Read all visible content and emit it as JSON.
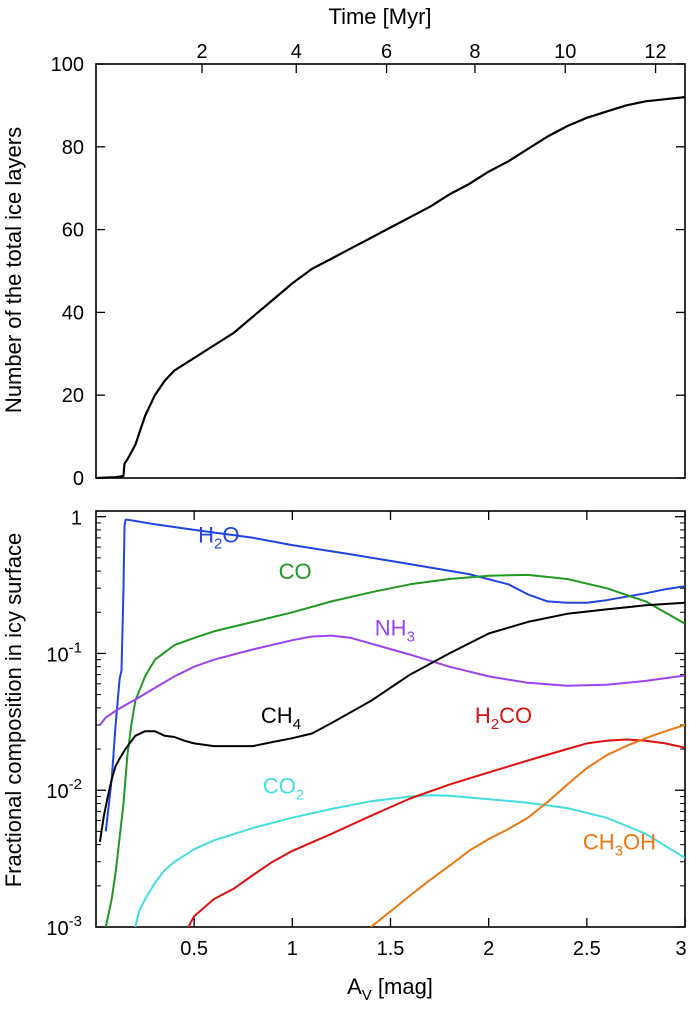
{
  "chart_data": [
    {
      "type": "line",
      "xlabel_top": "Time [Myr]",
      "ylabel": "Number of the total ice layers",
      "ylim": [
        0,
        100
      ],
      "yticks": [
        0,
        20,
        40,
        60,
        80,
        100
      ],
      "xlim": [
        0.0,
        3.0
      ],
      "top_axis_ticks": [
        "2",
        "4",
        "6",
        "8",
        "10",
        "12"
      ],
      "top_axis_tick_av": [
        0.54,
        1.02,
        1.48,
        1.93,
        2.39,
        2.85
      ],
      "grid": false,
      "series": [
        {
          "color": "#000000",
          "x": [
            0.0,
            0.1,
            0.14,
            0.145,
            0.16,
            0.2,
            0.25,
            0.3,
            0.35,
            0.4,
            0.5,
            0.6,
            0.7,
            0.8,
            0.9,
            1.0,
            1.1,
            1.2,
            1.3,
            1.4,
            1.5,
            1.6,
            1.7,
            1.8,
            1.9,
            2.0,
            2.1,
            2.2,
            2.3,
            2.4,
            2.5,
            2.6,
            2.7,
            2.8,
            2.9,
            3.0
          ],
          "y": [
            0,
            0.2,
            0.5,
            3.5,
            4.5,
            8,
            15,
            20,
            23.5,
            26,
            29,
            32,
            35,
            39,
            43,
            47,
            50.5,
            53,
            55.5,
            58,
            60.5,
            63,
            65.5,
            68.5,
            71,
            74,
            76.5,
            79.5,
            82.5,
            85,
            87,
            88.5,
            90,
            91,
            91.5,
            92
          ]
        }
      ]
    },
    {
      "type": "line",
      "xlabel": "A",
      "xlabel_sub": "V",
      "xlabel_rest": " [mag]",
      "ylabel": "Fractional composition in icy surface",
      "yscale": "log",
      "ylim": [
        0.001,
        1.1
      ],
      "yticks": [
        {
          "value": 1,
          "base": "1",
          "exp": ""
        },
        {
          "value": 0.1,
          "base": "10",
          "exp": "-1"
        },
        {
          "value": 0.01,
          "base": "10",
          "exp": "-2"
        },
        {
          "value": 0.001,
          "base": "10",
          "exp": "-3"
        }
      ],
      "xlim": [
        0.0,
        3.0
      ],
      "xticks": [
        "0.5",
        "1",
        "1.5",
        "2",
        "2.5",
        "3"
      ],
      "xtick_values": [
        0.5,
        1.0,
        1.5,
        2.0,
        2.5,
        3.0
      ],
      "grid": false,
      "series": [
        {
          "label": "H",
          "sub": "2",
          "rest": "O",
          "color": "#2244dd",
          "label_at": [
            0.52,
            0.65
          ],
          "x": [
            0.05,
            0.08,
            0.1,
            0.12,
            0.13,
            0.14,
            0.145,
            0.15,
            0.16,
            0.2,
            0.3,
            0.5,
            0.8,
            1.0,
            1.3,
            1.6,
            1.9,
            2.1,
            2.2,
            2.3,
            2.4,
            2.5,
            2.6,
            2.7,
            2.8,
            2.9,
            3.0
          ],
          "y": [
            0.005,
            0.012,
            0.03,
            0.065,
            0.075,
            0.3,
            0.85,
            0.95,
            0.95,
            0.93,
            0.88,
            0.8,
            0.7,
            0.62,
            0.53,
            0.45,
            0.38,
            0.32,
            0.27,
            0.24,
            0.235,
            0.235,
            0.245,
            0.26,
            0.275,
            0.295,
            0.31
          ]
        },
        {
          "label": "CO",
          "sub": "",
          "rest": "",
          "color": "#229922",
          "label_at": [
            0.93,
            0.35
          ],
          "x": [
            0.05,
            0.08,
            0.1,
            0.12,
            0.14,
            0.16,
            0.18,
            0.2,
            0.25,
            0.3,
            0.4,
            0.5,
            0.6,
            0.8,
            1.0,
            1.2,
            1.4,
            1.6,
            1.8,
            2.0,
            2.2,
            2.4,
            2.6,
            2.8,
            3.0
          ],
          "y": [
            0.001,
            0.0016,
            0.0025,
            0.0045,
            0.008,
            0.018,
            0.03,
            0.045,
            0.068,
            0.09,
            0.115,
            0.13,
            0.145,
            0.17,
            0.2,
            0.24,
            0.28,
            0.32,
            0.35,
            0.37,
            0.375,
            0.35,
            0.3,
            0.24,
            0.165
          ]
        },
        {
          "label": "NH",
          "sub": "3",
          "rest": "",
          "color": "#9944ee",
          "label_at": [
            1.42,
            0.135
          ],
          "x": [
            0.02,
            0.05,
            0.1,
            0.15,
            0.2,
            0.3,
            0.4,
            0.5,
            0.6,
            0.8,
            1.0,
            1.1,
            1.2,
            1.3,
            1.4,
            1.6,
            1.8,
            2.0,
            2.2,
            2.4,
            2.6,
            2.8,
            3.0
          ],
          "y": [
            0.03,
            0.034,
            0.038,
            0.042,
            0.046,
            0.056,
            0.068,
            0.08,
            0.09,
            0.107,
            0.125,
            0.133,
            0.135,
            0.13,
            0.118,
            0.098,
            0.08,
            0.068,
            0.061,
            0.058,
            0.059,
            0.063,
            0.069
          ]
        },
        {
          "label": "CH",
          "sub": "4",
          "rest": "",
          "color": "#000000",
          "label_at": [
            0.84,
            0.031
          ],
          "x": [
            0.02,
            0.04,
            0.06,
            0.08,
            0.1,
            0.12,
            0.15,
            0.2,
            0.25,
            0.3,
            0.35,
            0.4,
            0.45,
            0.5,
            0.6,
            0.7,
            0.8,
            0.9,
            1.0,
            1.1,
            1.2,
            1.4,
            1.6,
            1.8,
            2.0,
            2.2,
            2.4,
            2.6,
            2.8,
            3.0
          ],
          "y": [
            0.0042,
            0.0065,
            0.009,
            0.012,
            0.015,
            0.017,
            0.02,
            0.025,
            0.027,
            0.027,
            0.025,
            0.0245,
            0.023,
            0.022,
            0.021,
            0.021,
            0.021,
            0.0225,
            0.024,
            0.026,
            0.031,
            0.045,
            0.07,
            0.1,
            0.14,
            0.17,
            0.195,
            0.21,
            0.225,
            0.235
          ]
        },
        {
          "label": "CO",
          "sub": "2",
          "rest": "",
          "color": "#44dddd",
          "label_at": [
            0.85,
            0.0095
          ],
          "x": [
            0.2,
            0.22,
            0.25,
            0.3,
            0.35,
            0.4,
            0.5,
            0.6,
            0.8,
            1.0,
            1.2,
            1.4,
            1.6,
            1.7,
            1.8,
            2.0,
            2.2,
            2.4,
            2.6,
            2.8,
            3.0
          ],
          "y": [
            0.001,
            0.0013,
            0.0016,
            0.0021,
            0.0026,
            0.003,
            0.0037,
            0.0043,
            0.0053,
            0.0063,
            0.0073,
            0.0083,
            0.009,
            0.0092,
            0.0091,
            0.0086,
            0.0081,
            0.0074,
            0.0063,
            0.0048,
            0.0032
          ]
        },
        {
          "label": "H",
          "sub": "2",
          "rest": "CO",
          "color": "#dd1111",
          "label_at": [
            1.93,
            0.031
          ],
          "x": [
            0.47,
            0.5,
            0.6,
            0.7,
            0.8,
            0.9,
            1.0,
            1.2,
            1.4,
            1.6,
            1.8,
            2.0,
            2.2,
            2.4,
            2.5,
            2.6,
            2.7,
            2.8,
            2.9,
            3.0
          ],
          "y": [
            0.001,
            0.0012,
            0.0016,
            0.0019,
            0.0024,
            0.003,
            0.0036,
            0.0048,
            0.0065,
            0.0087,
            0.011,
            0.0135,
            0.0165,
            0.02,
            0.022,
            0.023,
            0.0235,
            0.023,
            0.022,
            0.0205
          ]
        },
        {
          "label": "CH",
          "sub": "3",
          "rest": "OH",
          "color": "#ee7711",
          "label_at": [
            2.48,
            0.0037
          ],
          "x": [
            1.4,
            1.5,
            1.6,
            1.7,
            1.8,
            1.9,
            2.0,
            2.1,
            2.2,
            2.3,
            2.4,
            2.5,
            2.6,
            2.7,
            2.8,
            2.9,
            3.0
          ],
          "y": [
            0.001,
            0.0013,
            0.0017,
            0.0022,
            0.0028,
            0.0036,
            0.0044,
            0.0052,
            0.0063,
            0.0082,
            0.011,
            0.0145,
            0.018,
            0.021,
            0.024,
            0.027,
            0.03
          ]
        }
      ]
    }
  ]
}
